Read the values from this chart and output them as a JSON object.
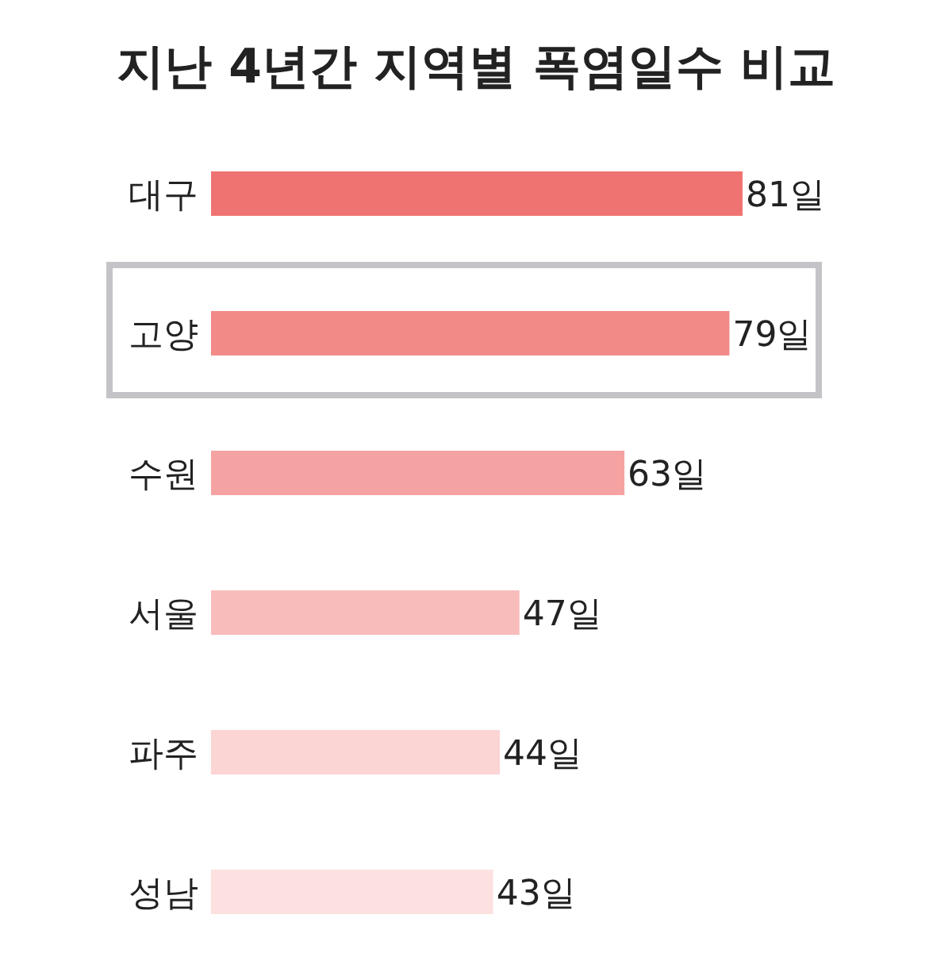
{
  "chart_data": {
    "type": "bar",
    "orientation": "horizontal",
    "title": "지난 4년간 지역별 폭염일수 비교",
    "categories": [
      "대구",
      "고양",
      "수원",
      "서울",
      "파주",
      "성남"
    ],
    "values": [
      81,
      79,
      63,
      47,
      44,
      43
    ],
    "colors": [
      "#ef7471",
      "#f28a87",
      "#f5a3a2",
      "#f8bcbb",
      "#fbd4d4",
      "#fde1e1"
    ],
    "value_labels": [
      "81일",
      "79일",
      "63일",
      "47일",
      "44일",
      "43일"
    ]
  }
}
